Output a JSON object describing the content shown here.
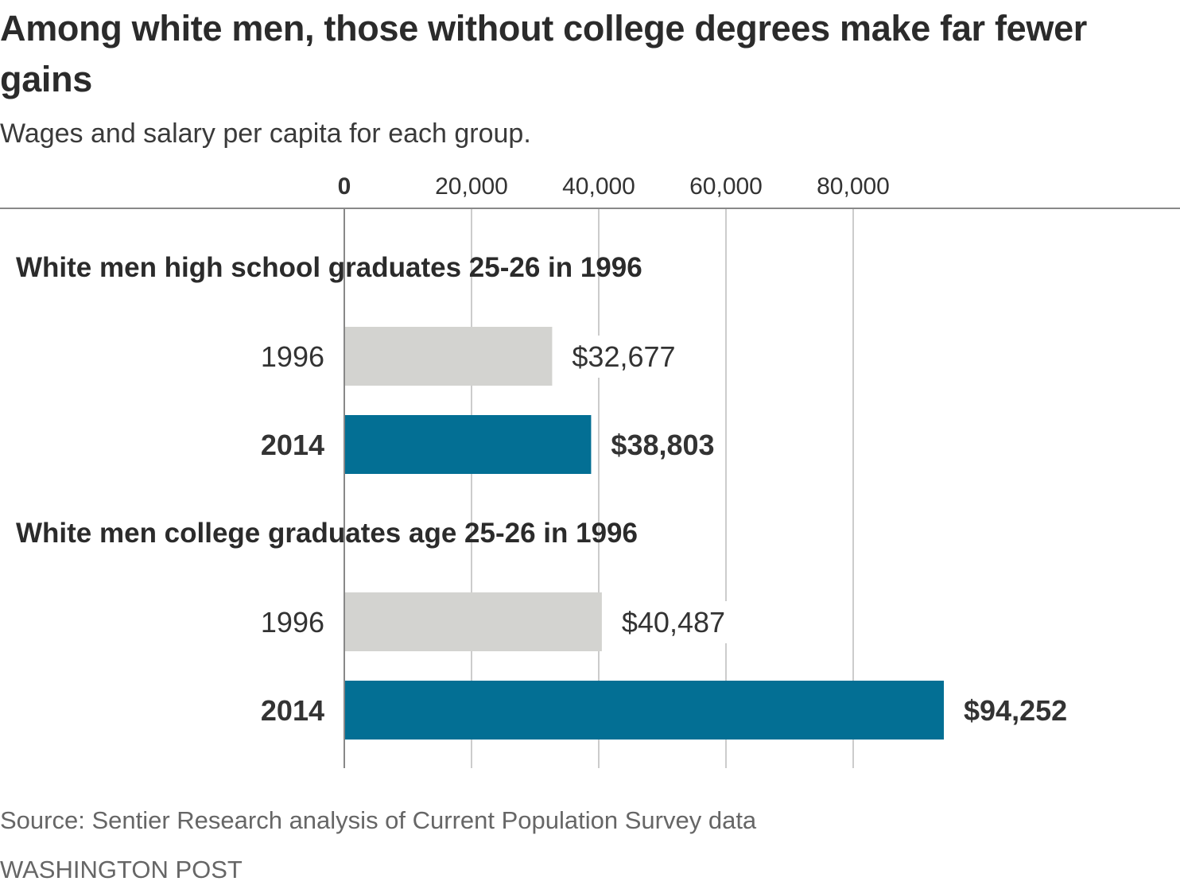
{
  "colors": {
    "bar_1996": "#d3d3d0",
    "bar_2014": "#036f94",
    "text": "#333333",
    "grid": "#cccccc",
    "axis": "#888888"
  },
  "chart_data": {
    "type": "bar",
    "orientation": "horizontal",
    "title": "Among white men, those without college degrees make far fewer gains",
    "subtitle": "Wages and salary per capita for each group.",
    "xlabel": "",
    "ylabel": "",
    "xlim": [
      0,
      131000
    ],
    "ticks": [
      0,
      20000,
      40000,
      60000,
      80000
    ],
    "tick_labels": [
      "0",
      "20,000",
      "40,000",
      "60,000",
      "80,000"
    ],
    "grid": true,
    "groups": [
      {
        "title": "White men high school graduates 25-26 in 1996",
        "bars": [
          {
            "category": "1996",
            "value": 32677,
            "label": "$32,677",
            "highlight": false
          },
          {
            "category": "2014",
            "value": 38803,
            "label": "$38,803",
            "highlight": true
          }
        ]
      },
      {
        "title": "White men college graduates age 25-26 in 1996",
        "bars": [
          {
            "category": "1996",
            "value": 40487,
            "label": "$40,487",
            "highlight": false
          },
          {
            "category": "2014",
            "value": 94252,
            "label": "$94,252",
            "highlight": true
          }
        ]
      }
    ]
  },
  "footer": {
    "source": "Source: Sentier Research analysis of Current Population Survey data",
    "credit": "WASHINGTON POST"
  }
}
